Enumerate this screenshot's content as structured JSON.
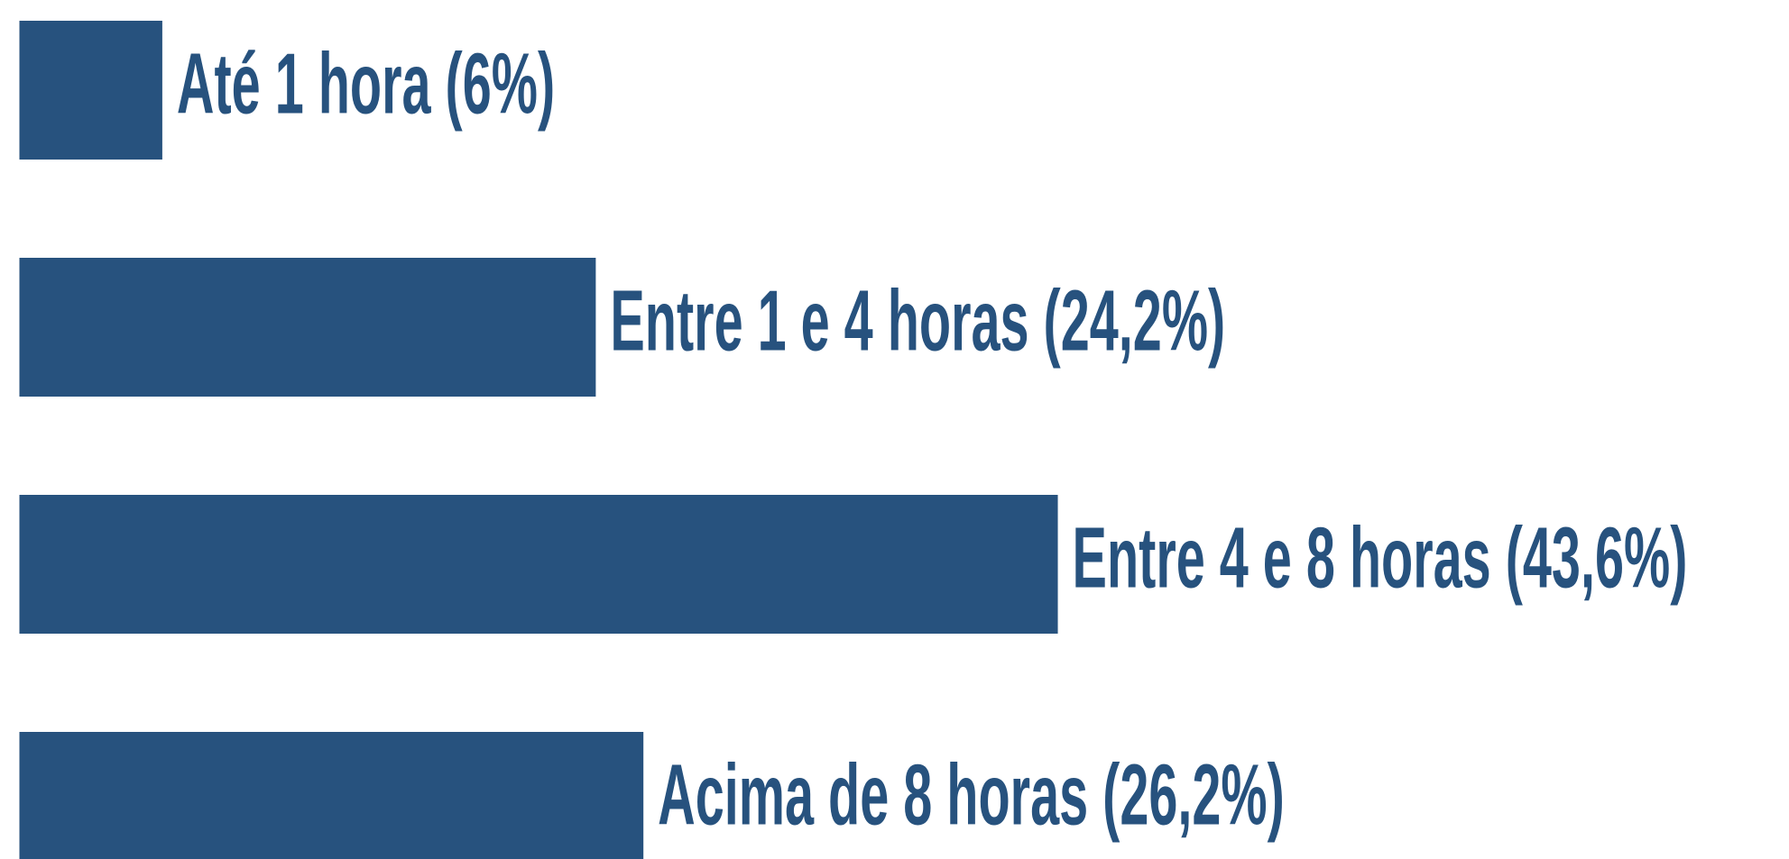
{
  "chart_data": {
    "type": "bar",
    "orientation": "horizontal",
    "categories": [
      "Até 1 hora",
      "Entre 1 e 4 horas",
      "Entre 4 e 8 horas",
      "Acima de 8 horas"
    ],
    "values": [
      6,
      24.2,
      43.6,
      26.2
    ],
    "value_labels": [
      "(6%)",
      "(24,2%)",
      "(43,6%)",
      "(26,2%)"
    ],
    "color": "#27527e"
  }
}
